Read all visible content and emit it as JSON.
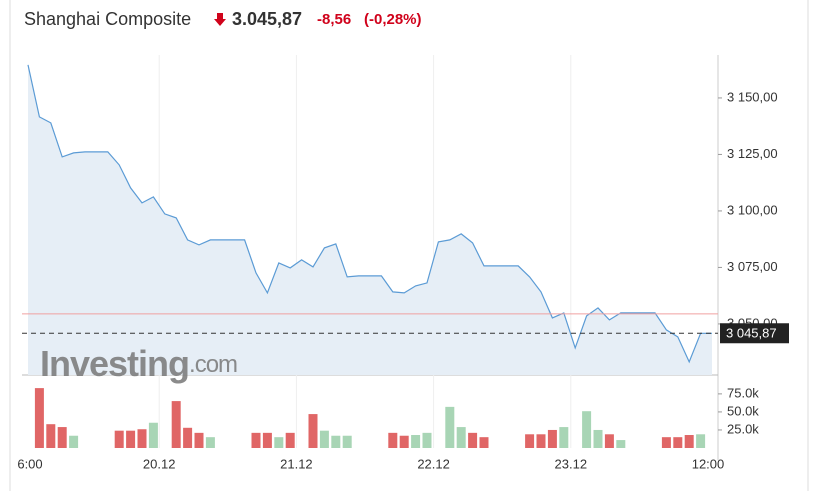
{
  "chart_data": {
    "type": "area",
    "title": "Shanghai Composite",
    "price": "3.045,87",
    "change": "-8,56",
    "change_percent": "(-0,28%)",
    "watermark": [
      "Investing",
      ".com"
    ],
    "color": "#5b9bd5",
    "fill": "#e6eef6",
    "values": [
      3164.6,
      3141.59,
      3138.94,
      3123.89,
      3125.66,
      3126.11,
      3126.11,
      3126.11,
      3120.35,
      3110.18,
      3103.54,
      3106.19,
      3098.67,
      3096.9,
      3087.17,
      3084.96,
      3087.17,
      3087.17,
      3087.17,
      3087.17,
      3072.57,
      3063.72,
      3076.99,
      3074.78,
      3078.32,
      3075.22,
      3083.63,
      3085.4,
      3070.8,
      3071.24,
      3071.24,
      3071.24,
      3064.16,
      3063.72,
      3066.81,
      3068.14,
      3086.28,
      3087.17,
      3089.82,
      3085.84,
      3075.66,
      3075.66,
      3075.66,
      3075.66,
      3070.8,
      3064.16,
      3052.65,
      3054.87,
      3039.38,
      3053.54,
      3057.08,
      3051.77,
      3054.87,
      3054.87,
      3054.87,
      3054.87,
      3047.35,
      3044.25,
      3033.19,
      3045.87,
      3045.87
    ],
    "last": {
      "value": 3045.87,
      "label": "3 045,87"
    },
    "previous_close": 3054.43,
    "ylim": [
      3027.4,
      3169
    ],
    "yticks": [
      {
        "value": 3050,
        "label": "3 050,00"
      },
      {
        "value": 3075,
        "label": "3 075,00"
      },
      {
        "value": 3100,
        "label": "3 100,00"
      },
      {
        "value": 3125,
        "label": "3 125,00"
      },
      {
        "value": 3150,
        "label": "3 150,00"
      }
    ],
    "x_labels": [
      "6:00",
      "20.12",
      "21.12",
      "22.12",
      "23.12",
      "12:00"
    ],
    "volume": [
      null,
      83000,
      33000,
      29000,
      17000,
      null,
      null,
      null,
      24000,
      24000,
      26000,
      35000,
      null,
      65000,
      28000,
      21000,
      15000,
      null,
      null,
      null,
      21000,
      21000,
      15000,
      21000,
      null,
      47000,
      24000,
      17000,
      17000,
      null,
      null,
      null,
      21000,
      17000,
      18000,
      21000,
      null,
      57000,
      29000,
      21000,
      15000,
      null,
      null,
      null,
      19000,
      19000,
      25000,
      29000,
      null,
      51000,
      25000,
      19000,
      11000,
      null,
      null,
      null,
      15000,
      15000,
      18000,
      19000,
      null
    ],
    "volume_colors": [
      null,
      "#e06666",
      "#e06666",
      "#e06666",
      "#a8d5b5",
      null,
      null,
      null,
      "#e06666",
      "#e06666",
      "#e06666",
      "#a8d5b5",
      null,
      "#e06666",
      "#e06666",
      "#e06666",
      "#a8d5b5",
      null,
      null,
      null,
      "#e06666",
      "#e06666",
      "#a8d5b5",
      "#e06666",
      null,
      "#e06666",
      "#a8d5b5",
      "#a8d5b5",
      "#a8d5b5",
      null,
      null,
      null,
      "#e06666",
      "#e06666",
      "#a8d5b5",
      "#a8d5b5",
      null,
      "#a8d5b5",
      "#a8d5b5",
      "#e06666",
      "#e06666",
      null,
      null,
      null,
      "#e06666",
      "#e06666",
      "#e06666",
      "#a8d5b5",
      null,
      "#a8d5b5",
      "#a8d5b5",
      "#e06666",
      "#a8d5b5",
      null,
      null,
      null,
      "#e06666",
      "#e06666",
      "#e06666",
      "#a8d5b5",
      null
    ],
    "volume_ylim": [
      0,
      97000
    ],
    "volume_yticks": [
      {
        "value": 25000,
        "label": "25.0k"
      },
      {
        "value": 50000,
        "label": "50.0k"
      },
      {
        "value": 75000,
        "label": "75.0k"
      }
    ]
  }
}
